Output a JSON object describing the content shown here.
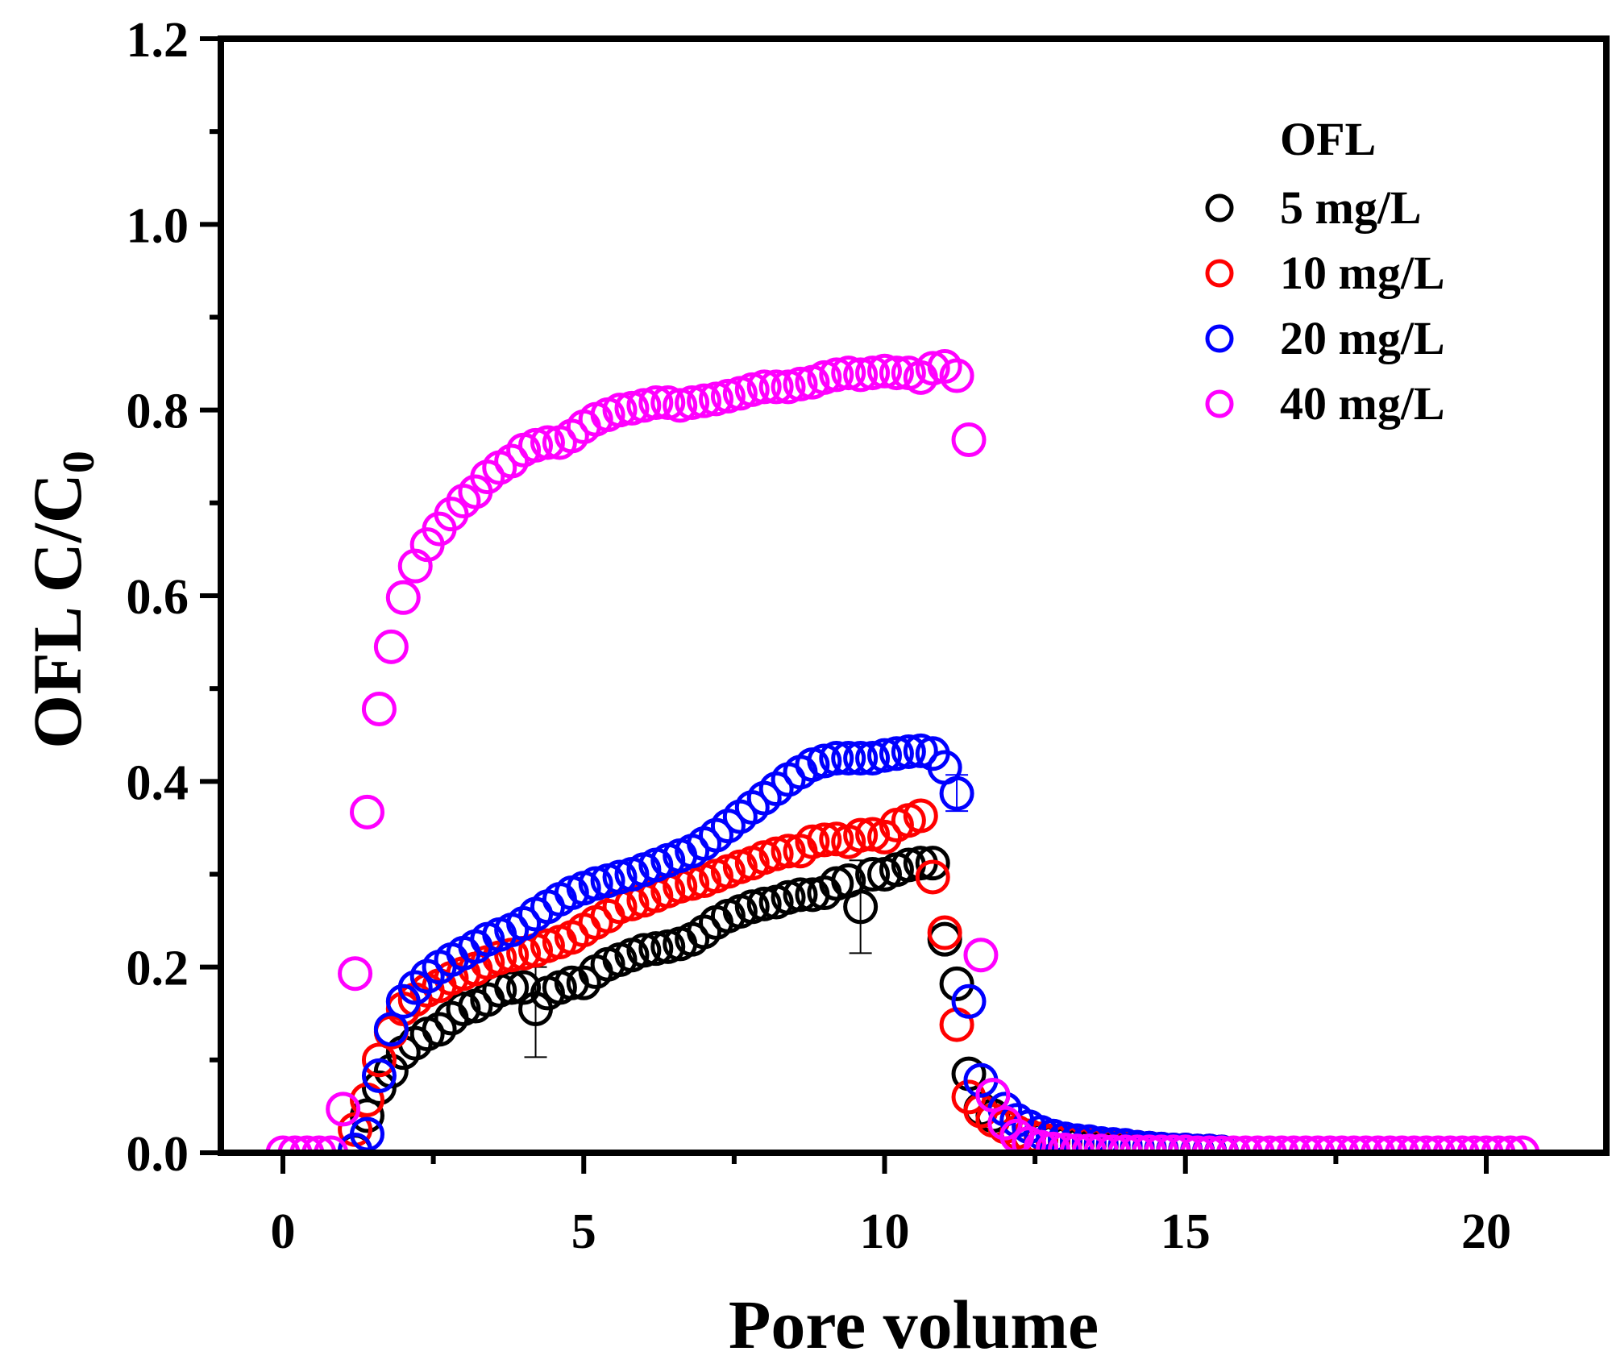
{
  "chart_data": {
    "type": "scatter",
    "title": "",
    "xlabel": "Pore volume",
    "ylabel": "OFL C/C",
    "ylabel_subscript": "0",
    "xlim": [
      -0.5,
      22
    ],
    "ylim": [
      0,
      1.2
    ],
    "xticks": [
      0,
      5,
      10,
      15,
      20
    ],
    "xtick_labels": [
      "0",
      "5",
      "10",
      "15",
      "20"
    ],
    "x_minor_ticks": [
      2.5,
      7.5,
      12.5,
      17.5
    ],
    "yticks": [
      0.0,
      0.2,
      0.4,
      0.6,
      0.8,
      1.0,
      1.2
    ],
    "ytick_labels": [
      "0.0",
      "0.2",
      "0.4",
      "0.6",
      "0.8",
      "1.0",
      "1.2"
    ],
    "y_minor_ticks": [
      0.1,
      0.3,
      0.5,
      0.7,
      0.9,
      1.1
    ],
    "grid": false,
    "marker": "open-circle",
    "legend": {
      "title": "OFL",
      "position": "top-right",
      "entries": [
        "5 mg/L",
        "10 mg/L",
        "20 mg/L",
        "40 mg/L"
      ]
    },
    "series": [
      {
        "name": "5 mg/L",
        "color": "#000000",
        "x": [
          1.2,
          1.4,
          1.6,
          1.8,
          2.0,
          2.2,
          2.4,
          2.6,
          2.8,
          3.0,
          3.2,
          3.4,
          3.6,
          3.8,
          4.0,
          4.2,
          4.4,
          4.6,
          4.8,
          5.0,
          5.2,
          5.4,
          5.6,
          5.8,
          6.0,
          6.2,
          6.4,
          6.6,
          6.8,
          7.0,
          7.2,
          7.4,
          7.6,
          7.8,
          8.0,
          8.2,
          8.4,
          8.6,
          8.8,
          9.0,
          9.2,
          9.4,
          9.6,
          9.8,
          10.0,
          10.2,
          10.4,
          10.6,
          10.8,
          11.0,
          11.2,
          11.4,
          11.6,
          11.8,
          12.0,
          12.2,
          12.4,
          12.6,
          12.8,
          13.0,
          13.2,
          13.4,
          13.6,
          13.8,
          14.0,
          14.2,
          14.4,
          14.6,
          14.8,
          15.0,
          15.2,
          15.4
        ],
        "y": [
          0.002,
          0.04,
          0.07,
          0.088,
          0.108,
          0.118,
          0.128,
          0.133,
          0.145,
          0.155,
          0.158,
          0.165,
          0.175,
          0.178,
          0.178,
          0.155,
          0.172,
          0.178,
          0.183,
          0.183,
          0.195,
          0.203,
          0.208,
          0.213,
          0.218,
          0.22,
          0.222,
          0.225,
          0.23,
          0.238,
          0.248,
          0.255,
          0.26,
          0.265,
          0.268,
          0.27,
          0.275,
          0.278,
          0.278,
          0.28,
          0.29,
          0.293,
          0.265,
          0.3,
          0.3,
          0.305,
          0.31,
          0.312,
          0.312,
          0.23,
          0.182,
          0.085,
          0.047,
          0.04,
          0.03,
          0.022,
          0.018,
          0.014,
          0.012,
          0.01,
          0.008,
          0.007,
          0.006,
          0.005,
          0.004,
          0.004,
          0.003,
          0.003,
          0.002,
          0.002,
          0.001,
          0.001
        ],
        "error_bars": [
          {
            "x": 4.2,
            "low": 0.103,
            "high": 0.2
          },
          {
            "x": 9.6,
            "low": 0.215,
            "high": 0.315
          }
        ]
      },
      {
        "name": "10 mg/L",
        "color": "#ff0000",
        "x": [
          1.2,
          1.4,
          1.6,
          1.8,
          2.0,
          2.2,
          2.4,
          2.6,
          2.8,
          3.0,
          3.2,
          3.4,
          3.6,
          3.8,
          4.0,
          4.2,
          4.4,
          4.6,
          4.8,
          5.0,
          5.2,
          5.4,
          5.6,
          5.8,
          6.0,
          6.2,
          6.4,
          6.6,
          6.8,
          7.0,
          7.2,
          7.4,
          7.6,
          7.8,
          8.0,
          8.2,
          8.4,
          8.6,
          8.8,
          9.0,
          9.2,
          9.4,
          9.6,
          9.8,
          10.0,
          10.2,
          10.4,
          10.6,
          10.8,
          11.0,
          11.2,
          11.4,
          11.6,
          11.8,
          12.0,
          12.2,
          12.4,
          12.6,
          12.8,
          13.0,
          13.2,
          13.4,
          13.6,
          13.8,
          14.0,
          14.2,
          14.4,
          14.6,
          14.8,
          15.0,
          15.2,
          15.4,
          15.6
        ],
        "y": [
          0.025,
          0.057,
          0.1,
          0.13,
          0.155,
          0.165,
          0.175,
          0.18,
          0.188,
          0.193,
          0.198,
          0.205,
          0.21,
          0.213,
          0.215,
          0.218,
          0.223,
          0.227,
          0.232,
          0.24,
          0.248,
          0.255,
          0.265,
          0.268,
          0.272,
          0.277,
          0.282,
          0.287,
          0.29,
          0.293,
          0.298,
          0.303,
          0.308,
          0.312,
          0.318,
          0.322,
          0.325,
          0.325,
          0.335,
          0.337,
          0.338,
          0.335,
          0.342,
          0.343,
          0.34,
          0.353,
          0.358,
          0.363,
          0.297,
          0.237,
          0.138,
          0.06,
          0.045,
          0.035,
          0.028,
          0.022,
          0.018,
          0.015,
          0.013,
          0.012,
          0.011,
          0.01,
          0.009,
          0.008,
          0.007,
          0.006,
          0.005,
          0.004,
          0.003,
          0.003,
          0.002,
          0.002,
          0.001
        ],
        "error_bars": []
      },
      {
        "name": "20 mg/L",
        "color": "#0000ff",
        "x": [
          1.2,
          1.4,
          1.6,
          1.8,
          2.0,
          2.2,
          2.4,
          2.6,
          2.8,
          3.0,
          3.2,
          3.4,
          3.6,
          3.8,
          4.0,
          4.2,
          4.4,
          4.6,
          4.8,
          5.0,
          5.2,
          5.4,
          5.6,
          5.8,
          6.0,
          6.2,
          6.4,
          6.6,
          6.8,
          7.0,
          7.2,
          7.4,
          7.6,
          7.8,
          8.0,
          8.2,
          8.4,
          8.6,
          8.8,
          9.0,
          9.2,
          9.4,
          9.6,
          9.8,
          10.0,
          10.2,
          10.4,
          10.6,
          10.8,
          11.0,
          11.2,
          11.4,
          11.6,
          11.8,
          12.0,
          12.2,
          12.4,
          12.6,
          12.8,
          13.0,
          13.2,
          13.4,
          13.6,
          13.8,
          14.0,
          14.2,
          14.4,
          14.6,
          14.8,
          15.0,
          15.2,
          15.4,
          15.6
        ],
        "y": [
          0.003,
          0.02,
          0.083,
          0.133,
          0.163,
          0.178,
          0.19,
          0.2,
          0.208,
          0.215,
          0.222,
          0.23,
          0.235,
          0.24,
          0.247,
          0.257,
          0.265,
          0.273,
          0.28,
          0.285,
          0.29,
          0.293,
          0.297,
          0.3,
          0.305,
          0.31,
          0.315,
          0.32,
          0.325,
          0.333,
          0.342,
          0.352,
          0.362,
          0.372,
          0.382,
          0.392,
          0.402,
          0.41,
          0.418,
          0.422,
          0.425,
          0.425,
          0.425,
          0.425,
          0.428,
          0.43,
          0.432,
          0.433,
          0.43,
          0.415,
          0.387,
          0.163,
          0.078,
          0.062,
          0.047,
          0.035,
          0.028,
          0.022,
          0.018,
          0.015,
          0.013,
          0.012,
          0.01,
          0.009,
          0.008,
          0.006,
          0.005,
          0.004,
          0.003,
          0.003,
          0.002,
          0.002,
          0.001
        ],
        "error_bars": [
          {
            "x": 11.2,
            "low": 0.368,
            "high": 0.407
          }
        ]
      },
      {
        "name": "40 mg/L",
        "color": "#ff00ff",
        "x": [
          0.0,
          0.2,
          0.4,
          0.6,
          0.8,
          1.0,
          1.2,
          1.4,
          1.6,
          1.8,
          2.0,
          2.2,
          2.4,
          2.6,
          2.8,
          3.0,
          3.2,
          3.4,
          3.6,
          3.8,
          4.0,
          4.2,
          4.4,
          4.6,
          4.8,
          5.0,
          5.2,
          5.4,
          5.6,
          5.8,
          6.0,
          6.2,
          6.4,
          6.6,
          6.8,
          7.0,
          7.2,
          7.4,
          7.6,
          7.8,
          8.0,
          8.2,
          8.4,
          8.6,
          8.8,
          9.0,
          9.2,
          9.4,
          9.6,
          9.8,
          10.0,
          10.2,
          10.4,
          10.6,
          10.8,
          11.0,
          11.2,
          11.4,
          11.6,
          11.8,
          12.0,
          12.2,
          12.4,
          12.6,
          12.8,
          13.0,
          13.2,
          13.4,
          13.6,
          13.8,
          14.0,
          14.2,
          14.4,
          14.6,
          14.8,
          15.0,
          15.2,
          15.4,
          15.6,
          15.8,
          16.0,
          16.2,
          16.4,
          16.6,
          16.8,
          17.0,
          17.2,
          17.4,
          17.6,
          17.8,
          18.0,
          18.2,
          18.4,
          18.6,
          18.8,
          19.0,
          19.2,
          19.4,
          19.6,
          19.8,
          20.0,
          20.2,
          20.4,
          20.6
        ],
        "y": [
          0.0,
          0.0,
          0.0,
          0.0,
          0.0,
          0.047,
          0.193,
          0.367,
          0.478,
          0.545,
          0.598,
          0.632,
          0.655,
          0.672,
          0.688,
          0.702,
          0.712,
          0.728,
          0.738,
          0.745,
          0.757,
          0.762,
          0.765,
          0.765,
          0.772,
          0.782,
          0.79,
          0.795,
          0.8,
          0.802,
          0.805,
          0.808,
          0.808,
          0.805,
          0.808,
          0.81,
          0.812,
          0.815,
          0.818,
          0.822,
          0.825,
          0.825,
          0.825,
          0.828,
          0.83,
          0.835,
          0.838,
          0.84,
          0.838,
          0.84,
          0.842,
          0.84,
          0.84,
          0.835,
          0.845,
          0.847,
          0.837,
          0.768,
          0.213,
          0.062,
          0.032,
          0.018,
          0.01,
          0.006,
          0.004,
          0.003,
          0.002,
          0.002,
          0.002,
          0.001,
          0.001,
          0.001,
          0.001,
          0.001,
          0.001,
          0.001,
          0.0,
          0.0,
          0.0,
          0.0,
          0.0,
          0.0,
          0.0,
          0.0,
          0.0,
          0.0,
          0.0,
          0.0,
          0.0,
          0.0,
          0.0,
          0.0,
          0.0,
          0.0,
          0.0,
          0.0,
          0.0,
          0.0,
          0.0,
          0.0,
          0.0,
          0.0,
          0.0,
          0.0
        ],
        "error_bars": []
      }
    ]
  }
}
